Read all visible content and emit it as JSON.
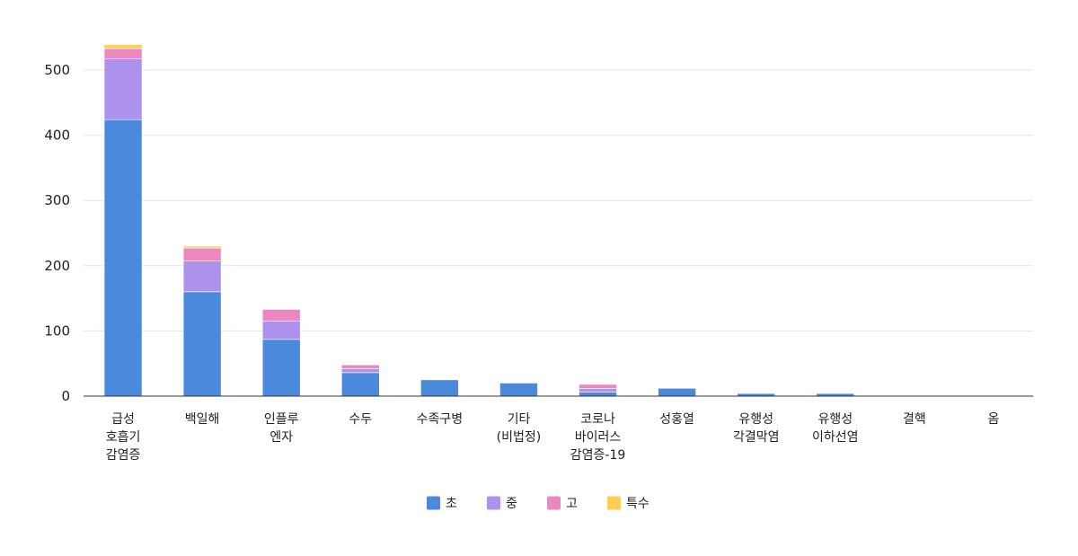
{
  "chart_data": {
    "type": "bar",
    "stacked": true,
    "title": "",
    "xlabel": "",
    "ylabel": "",
    "ylim": [
      0,
      540
    ],
    "yticks": [
      0,
      100,
      200,
      300,
      400,
      500
    ],
    "grid": true,
    "legend_position": "bottom",
    "categories": [
      [
        "급성",
        "호흡기",
        "감염증"
      ],
      [
        "백일해"
      ],
      [
        "인플루",
        "엔자"
      ],
      [
        "수두"
      ],
      [
        "수족구병"
      ],
      [
        "기타",
        "(비법정)"
      ],
      [
        "코로나",
        "바이러스",
        "감염증-19"
      ],
      [
        "성홍열"
      ],
      [
        "유행성",
        "각결막염"
      ],
      [
        "유행성",
        "이하선염"
      ],
      [
        "결핵"
      ],
      [
        "옴"
      ]
    ],
    "series": [
      {
        "name": "초",
        "color": "#4a89dc",
        "values": [
          424,
          160,
          87,
          36,
          25,
          20,
          6,
          12,
          4,
          4,
          0,
          1
        ]
      },
      {
        "name": "중",
        "color": "#ac92ec",
        "values": [
          93,
          47,
          28,
          6,
          0,
          0,
          6,
          0,
          0,
          0,
          0,
          0
        ]
      },
      {
        "name": "고",
        "color": "#ec87c0",
        "values": [
          16,
          20,
          18,
          6,
          0,
          0,
          6,
          0,
          0,
          0,
          1,
          0
        ]
      },
      {
        "name": "특수",
        "color": "#ffce54",
        "values": [
          6,
          3,
          0,
          0,
          0,
          0,
          0,
          0,
          0,
          0,
          0,
          0
        ]
      }
    ]
  }
}
